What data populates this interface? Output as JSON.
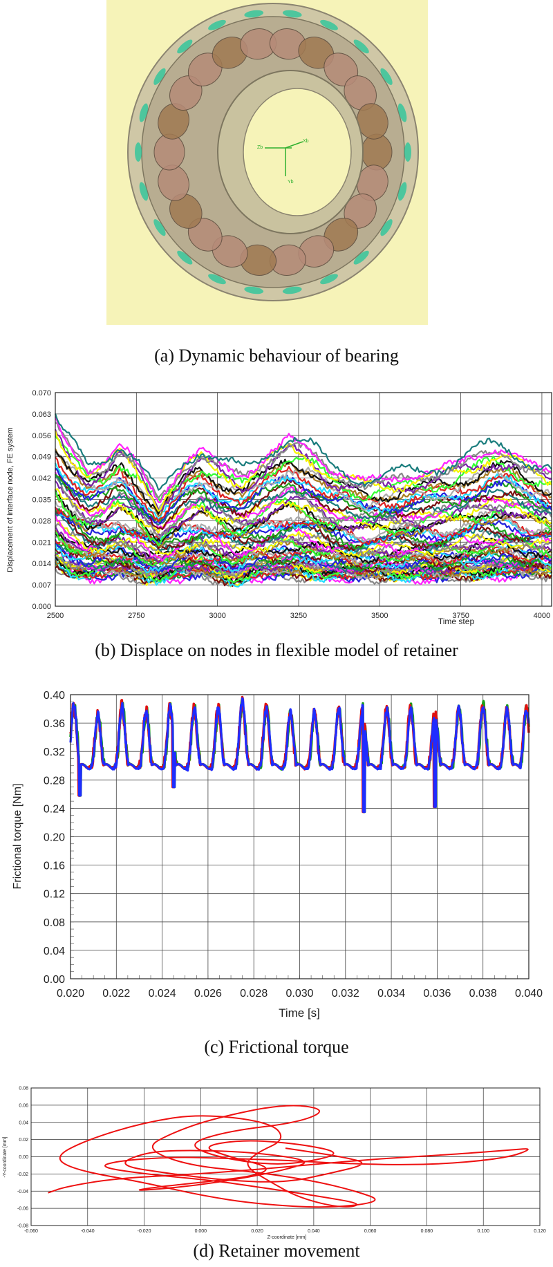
{
  "captions": {
    "a": "(a) Dynamic behaviour of bearing",
    "b": "(b) Displace on nodes in flexible model of retainer",
    "c": "(c) Frictional torque",
    "d": "(d) Retainer movement"
  },
  "bearing_axes": {
    "z": "Zb",
    "x": "Xb",
    "y": "Yb"
  },
  "colors": {
    "bearing_background": "#f6f3b8",
    "plot_a_series": [
      "#f5f500",
      "#888888",
      "#ff22ff",
      "#1a7d7d",
      "#7a0f0f",
      "#1aa01a",
      "#2222dd",
      "#22ddff",
      "#dd2222",
      "#aaaaaa",
      "#aa7d22",
      "#111111",
      "#33ff33",
      "#7a22aa"
    ],
    "torque_lines": [
      "#1f2cff",
      "#e01010",
      "#1aa01a"
    ],
    "retainer_line": "#ee1111"
  },
  "chart_data": [
    {
      "type": "line",
      "xlabel": "Time step",
      "ylabel": "Displacement of interface node, FE system",
      "xlim": [
        2500,
        4030
      ],
      "ylim": [
        0.0,
        0.07
      ],
      "xticks": [
        "2500",
        "2750",
        "3000",
        "3250",
        "3500",
        "3750",
        "4000"
      ],
      "yticks": [
        "0.000",
        "0.007",
        "0.014",
        "0.021",
        "0.028",
        "0.035",
        "0.042",
        "0.049",
        "0.056",
        "0.063",
        "0.070"
      ],
      "grid": true,
      "series_count": 60,
      "envelope_upper": {
        "x": [
          2500,
          2530,
          2600,
          2650,
          2700,
          2750,
          2820,
          2900,
          2950,
          3000,
          3080,
          3150,
          3220,
          3280,
          3350,
          3450,
          3550,
          3650,
          3750,
          3850,
          3900,
          3950,
          4030
        ],
        "y": [
          0.062,
          0.056,
          0.046,
          0.048,
          0.054,
          0.048,
          0.036,
          0.048,
          0.052,
          0.048,
          0.044,
          0.05,
          0.056,
          0.053,
          0.046,
          0.042,
          0.043,
          0.045,
          0.048,
          0.053,
          0.052,
          0.048,
          0.044
        ]
      },
      "envelope_lower": {
        "x": [
          2500,
          2550,
          2600,
          2700,
          2780,
          2850,
          2950,
          3050,
          3100,
          3200,
          3350,
          3500,
          3700,
          3900,
          4030
        ],
        "y": [
          0.014,
          0.011,
          0.01,
          0.011,
          0.009,
          0.01,
          0.011,
          0.008,
          0.01,
          0.011,
          0.01,
          0.01,
          0.01,
          0.011,
          0.011
        ]
      }
    },
    {
      "type": "line",
      "xlabel": "Time [s]",
      "ylabel": "Frictional torque [Nm]",
      "xlim": [
        0.02,
        0.04
      ],
      "ylim": [
        0.0,
        0.4
      ],
      "xticks": [
        "0.020",
        "0.022",
        "0.024",
        "0.026",
        "0.028",
        "0.030",
        "0.032",
        "0.034",
        "0.036",
        "0.038",
        "0.040"
      ],
      "yticks": [
        "0.00",
        "0.04",
        "0.08",
        "0.12",
        "0.16",
        "0.20",
        "0.24",
        "0.28",
        "0.32",
        "0.36",
        "0.40"
      ],
      "grid": true,
      "peaks": {
        "x": [
          0.02015,
          0.0212,
          0.02225,
          0.0233,
          0.02435,
          0.0254,
          0.02645,
          0.0275,
          0.02855,
          0.0296,
          0.03065,
          0.0317,
          0.03275,
          0.0338,
          0.03485,
          0.0359,
          0.03695,
          0.038,
          0.03905,
          0.0399
        ],
        "y": [
          0.385,
          0.372,
          0.385,
          0.378,
          0.382,
          0.38,
          0.38,
          0.39,
          0.382,
          0.375,
          0.375,
          0.38,
          0.38,
          0.378,
          0.38,
          0.376,
          0.38,
          0.385,
          0.38,
          0.38
        ]
      },
      "baseline": 0.29,
      "dips": {
        "x": [
          0.0204,
          0.0245,
          0.0328,
          0.0359
        ],
        "y": [
          0.258,
          0.27,
          0.235,
          0.242
        ]
      }
    },
    {
      "type": "line",
      "xlabel": "Z-coordinate [mm]",
      "ylabel": "-Y-coordinate [mm]",
      "xlim": [
        -0.06,
        0.12
      ],
      "ylim": [
        -0.08,
        0.08
      ],
      "xticks": [
        "-0.060",
        "-0.040",
        "-0.020",
        "0.000",
        "0.020",
        "0.040",
        "0.060",
        "0.080",
        "0.100",
        "0.120"
      ],
      "yticks": [
        "0.08",
        "0.06",
        "0.04",
        "0.02",
        "0.00",
        "-0.02",
        "-0.04",
        "-0.06",
        "-0.08"
      ],
      "grid": true,
      "x": [
        -0.054,
        -0.048,
        -0.03,
        0.0,
        0.03,
        0.06,
        0.09,
        0.11,
        0.118,
        0.108,
        0.08,
        0.05,
        0.03,
        0.01,
        -0.01,
        -0.03,
        -0.036,
        -0.02,
        0.005,
        0.02,
        0.04,
        0.058,
        0.05,
        0.035,
        0.025,
        0.015,
        0.02,
        0.03,
        0.025,
        0.0,
        -0.02,
        -0.04,
        -0.052,
        -0.045,
        -0.02,
        0.0,
        0.02,
        0.045,
        0.065,
        0.055,
        0.04,
        0.02,
        -0.005,
        -0.02,
        -0.01,
        0.005,
        0.03,
        0.045,
        0.035,
        0.01,
        -0.005,
        0.005,
        0.025,
        0.04,
        0.05,
        0.035,
        0.015,
        0.0,
        0.01,
        0.025,
        0.02,
        0.0,
        -0.015,
        -0.025,
        -0.005,
        0.015,
        0.03,
        0.04,
        0.02,
        -0.005,
        -0.02,
        -0.03,
        -0.01,
        0.01,
        0.03,
        0.045,
        0.06,
        0.05,
        0.03
      ],
      "y": [
        -0.042,
        -0.035,
        -0.025,
        -0.02,
        -0.012,
        -0.003,
        0.003,
        0.008,
        0.01,
        -0.002,
        -0.01,
        -0.008,
        -0.004,
        -0.002,
        0.0,
        -0.005,
        -0.012,
        -0.02,
        -0.028,
        -0.035,
        -0.045,
        -0.055,
        -0.06,
        -0.048,
        -0.03,
        -0.01,
        0.005,
        0.02,
        0.04,
        0.05,
        0.04,
        0.02,
        0.0,
        -0.015,
        -0.03,
        -0.045,
        -0.055,
        -0.06,
        -0.052,
        -0.04,
        -0.028,
        -0.018,
        -0.01,
        0.01,
        0.028,
        0.045,
        0.062,
        0.055,
        0.04,
        0.03,
        0.015,
        0.0,
        -0.01,
        -0.005,
        0.005,
        0.015,
        0.02,
        0.012,
        0.0,
        -0.012,
        -0.022,
        -0.03,
        -0.035,
        -0.04,
        -0.035,
        -0.025,
        -0.015,
        -0.005,
        0.005,
        0.008,
        0.005,
        -0.01,
        -0.02,
        -0.028,
        -0.03,
        -0.02,
        -0.008,
        0.0,
        0.01
      ]
    }
  ]
}
